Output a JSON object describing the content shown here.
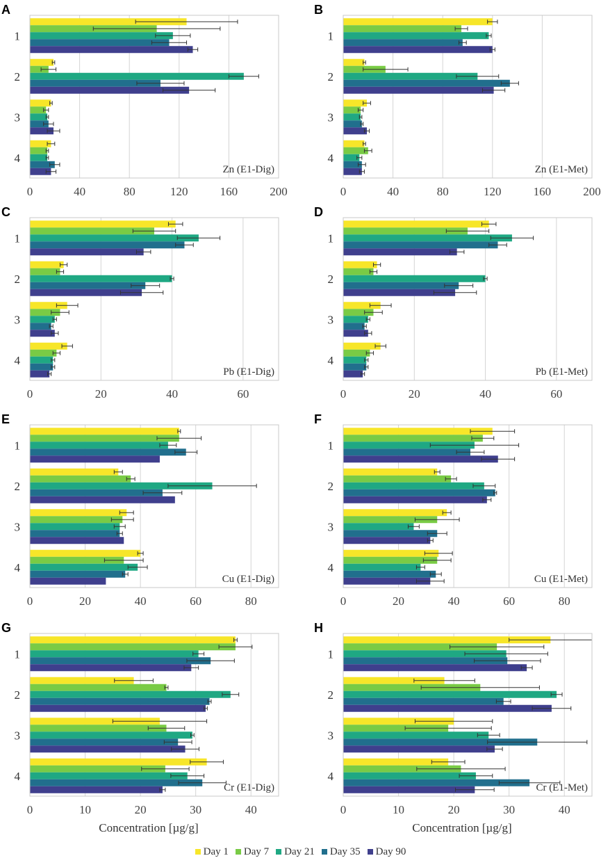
{
  "series_names": [
    "Day 1",
    "Day 7",
    "Day 21",
    "Day 35",
    "Day 90"
  ],
  "series_colors": [
    "#F7E629",
    "#79CB45",
    "#1FA883",
    "#216F8D",
    "#3F3F8D"
  ],
  "x_axis_label": "Concentration [µg/g]",
  "chart_data": [
    {
      "type": "bar",
      "panel": "A",
      "title": "Zn (E1-Dig)",
      "categories": [
        "1",
        "2",
        "3",
        "4"
      ],
      "xlim": [
        0,
        200
      ],
      "xticks": [
        0,
        40,
        80,
        120,
        160,
        200
      ],
      "series": [
        {
          "name": "Day 1",
          "values": [
            126,
            19,
            17,
            17
          ],
          "errors": [
            41,
            1,
            1,
            3
          ]
        },
        {
          "name": "Day 7",
          "values": [
            102,
            15,
            13,
            14
          ],
          "errors": [
            51,
            6,
            2,
            1
          ]
        },
        {
          "name": "Day 21",
          "values": [
            115,
            172,
            14,
            14
          ],
          "errors": [
            14,
            12,
            1,
            1
          ]
        },
        {
          "name": "Day 35",
          "values": [
            112,
            105,
            15,
            20
          ],
          "errors": [
            14,
            19,
            4,
            4
          ]
        },
        {
          "name": "Day 90",
          "values": [
            131,
            128,
            19,
            17
          ],
          "errors": [
            4,
            21,
            5,
            4
          ]
        }
      ]
    },
    {
      "type": "bar",
      "panel": "B",
      "title": "Zn (E1-Met)",
      "categories": [
        "1",
        "2",
        "3",
        "4"
      ],
      "xlim": [
        0,
        200
      ],
      "xticks": [
        0,
        40,
        80,
        120,
        160,
        200
      ],
      "series": [
        {
          "name": "Day 1",
          "values": [
            120,
            17,
            19,
            17
          ],
          "errors": [
            4,
            1,
            3,
            1
          ]
        },
        {
          "name": "Day 7",
          "values": [
            95,
            34,
            14,
            20
          ],
          "errors": [
            5,
            18,
            2,
            3
          ]
        },
        {
          "name": "Day 21",
          "values": [
            117,
            108,
            14,
            13
          ],
          "errors": [
            2,
            17,
            1,
            2
          ]
        },
        {
          "name": "Day 35",
          "values": [
            96,
            134,
            15,
            15
          ],
          "errors": [
            3,
            7,
            1,
            3
          ]
        },
        {
          "name": "Day 90",
          "values": [
            120,
            121,
            19,
            15
          ],
          "errors": [
            2,
            9,
            2,
            2
          ]
        }
      ]
    },
    {
      "type": "bar",
      "panel": "C",
      "title": "Pb (E1-Dig)",
      "categories": [
        "1",
        "2",
        "3",
        "4"
      ],
      "xlim": [
        0,
        70
      ],
      "xticks": [
        0,
        20,
        40,
        60
      ],
      "series": [
        {
          "name": "Day 1",
          "values": [
            41,
            9.5,
            10.5,
            10.5
          ],
          "errors": [
            2,
            1,
            3,
            1.5
          ]
        },
        {
          "name": "Day 7",
          "values": [
            35,
            8.5,
            8.5,
            7.5
          ],
          "errors": [
            6,
            1,
            2.5,
            1
          ]
        },
        {
          "name": "Day 21",
          "values": [
            47.5,
            40,
            7,
            6.5
          ],
          "errors": [
            6,
            0.5,
            0.5,
            0.5
          ]
        },
        {
          "name": "Day 35",
          "values": [
            43.5,
            32.5,
            6,
            6.5
          ],
          "errors": [
            2.5,
            4,
            0.5,
            0.5
          ]
        },
        {
          "name": "Day 90",
          "values": [
            32,
            31.5,
            7,
            5.5
          ],
          "errors": [
            2,
            6,
            1,
            0.5
          ]
        }
      ]
    },
    {
      "type": "bar",
      "panel": "D",
      "title": "Pb (E1-Met)",
      "categories": [
        "1",
        "2",
        "3",
        "4"
      ],
      "xlim": [
        0,
        70
      ],
      "xticks": [
        0,
        20,
        40,
        60
      ],
      "series": [
        {
          "name": "Day 1",
          "values": [
            41,
            9.5,
            10.5,
            10.5
          ],
          "errors": [
            2,
            1,
            3,
            1.5
          ]
        },
        {
          "name": "Day 7",
          "values": [
            35,
            8.5,
            8.5,
            7.5
          ],
          "errors": [
            6,
            1,
            2.5,
            1
          ]
        },
        {
          "name": "Day 21",
          "values": [
            47.5,
            40,
            7,
            6.5
          ],
          "errors": [
            6,
            0.5,
            0.5,
            0.5
          ]
        },
        {
          "name": "Day 35",
          "values": [
            43.5,
            32.5,
            6,
            6.5
          ],
          "errors": [
            2.5,
            4,
            0.5,
            0.5
          ]
        },
        {
          "name": "Day 90",
          "values": [
            32,
            31.5,
            7,
            5.5
          ],
          "errors": [
            2,
            6,
            1,
            0.5
          ]
        }
      ]
    },
    {
      "type": "bar",
      "panel": "E",
      "title": "Cu (E1-Dig)",
      "categories": [
        "1",
        "2",
        "3",
        "4"
      ],
      "xlim": [
        0,
        90
      ],
      "xticks": [
        0,
        20,
        40,
        60,
        80
      ],
      "series": [
        {
          "name": "Day 1",
          "values": [
            54,
            32,
            35,
            40
          ],
          "errors": [
            0.5,
            1.5,
            2.5,
            1
          ]
        },
        {
          "name": "Day 7",
          "values": [
            54,
            36.5,
            33.5,
            34
          ],
          "errors": [
            8,
            1.5,
            4,
            7
          ]
        },
        {
          "name": "Day 21",
          "values": [
            50,
            66,
            32.5,
            39
          ],
          "errors": [
            3,
            16,
            2,
            3.5
          ]
        },
        {
          "name": "Day 35",
          "values": [
            56.5,
            48,
            32.5,
            34.5
          ],
          "errors": [
            4,
            7,
            1,
            1
          ]
        },
        {
          "name": "Day 90",
          "values": [
            47,
            52.5,
            34,
            27.5
          ],
          "errors": [
            0,
            0,
            0,
            0
          ]
        }
      ]
    },
    {
      "type": "bar",
      "panel": "F",
      "title": "Cu (E1-Met)",
      "categories": [
        "1",
        "2",
        "3",
        "4"
      ],
      "xlim": [
        0,
        90
      ],
      "xticks": [
        0,
        20,
        40,
        60,
        80
      ],
      "series": [
        {
          "name": "Day 1",
          "values": [
            54,
            34,
            37.5,
            34.5
          ],
          "errors": [
            8,
            1,
            1.5,
            5
          ]
        },
        {
          "name": "Day 7",
          "values": [
            50.5,
            39,
            34,
            34
          ],
          "errors": [
            4,
            2,
            8,
            5
          ]
        },
        {
          "name": "Day 21",
          "values": [
            47.5,
            51,
            25.5,
            28
          ],
          "errors": [
            16,
            4,
            2,
            1.5
          ]
        },
        {
          "name": "Day 35",
          "values": [
            46,
            55,
            34,
            33.5
          ],
          "errors": [
            5,
            0.5,
            3.5,
            2
          ]
        },
        {
          "name": "Day 90",
          "values": [
            56,
            52,
            31.5,
            31.5
          ],
          "errors": [
            6,
            1.5,
            1,
            5
          ]
        }
      ]
    },
    {
      "type": "bar",
      "panel": "G",
      "title": "Cr (E1-Dig)",
      "categories": [
        "1",
        "2",
        "3",
        "4"
      ],
      "xlim": [
        0,
        45
      ],
      "xticks": [
        0,
        10,
        20,
        30,
        40
      ],
      "series": [
        {
          "name": "Day 1",
          "values": [
            37.2,
            18.8,
            23.5,
            32
          ],
          "errors": [
            0.3,
            3.5,
            8.5,
            3
          ]
        },
        {
          "name": "Day 7",
          "values": [
            37.2,
            24.7,
            24.7,
            24.5
          ],
          "errors": [
            3,
            0.3,
            3.3,
            4.3
          ]
        },
        {
          "name": "Day 21",
          "values": [
            30.5,
            36.3,
            29.4,
            28.5
          ],
          "errors": [
            1,
            1.5,
            0.3,
            3
          ]
        },
        {
          "name": "Day 35",
          "values": [
            32.7,
            32.5,
            26.8,
            31.2
          ],
          "errors": [
            4.3,
            0.3,
            2.5,
            4.3
          ]
        },
        {
          "name": "Day 90",
          "values": [
            29.2,
            31.8,
            28.1,
            24
          ],
          "errors": [
            1.3,
            0.3,
            2.5,
            0.5
          ]
        }
      ]
    },
    {
      "type": "bar",
      "panel": "H",
      "title": "Cr (E1-Met)",
      "categories": [
        "1",
        "2",
        "3",
        "4"
      ],
      "xlim": [
        0,
        45
      ],
      "xticks": [
        0,
        10,
        20,
        30,
        40
      ],
      "series": [
        {
          "name": "Day 1",
          "values": [
            37.5,
            18.3,
            20,
            19
          ],
          "errors": [
            7.5,
            5.5,
            7,
            3
          ]
        },
        {
          "name": "Day 7",
          "values": [
            27.8,
            24.8,
            19,
            21.3
          ],
          "errors": [
            8.5,
            10.7,
            7.8,
            8
          ]
        },
        {
          "name": "Day 21",
          "values": [
            29.5,
            38.6,
            26.3,
            24
          ],
          "errors": [
            7.5,
            1,
            2,
            3
          ]
        },
        {
          "name": "Day 35",
          "values": [
            29.7,
            29,
            35.1,
            33.7
          ],
          "errors": [
            6,
            1.3,
            9,
            5.5
          ]
        },
        {
          "name": "Day 90",
          "values": [
            33.2,
            37.7,
            27.4,
            23.8
          ],
          "errors": [
            1,
            3.5,
            1.4,
            3.5
          ]
        }
      ]
    }
  ]
}
